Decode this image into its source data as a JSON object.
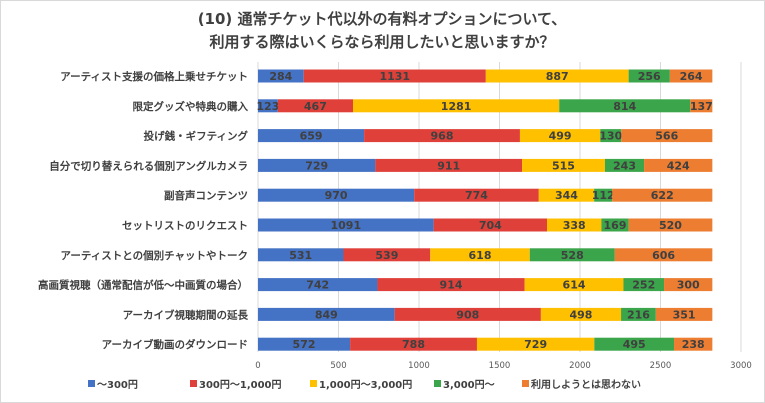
{
  "chart_data": {
    "type": "bar",
    "orientation": "horizontal",
    "stacked": true,
    "title": [
      "(10) 通常チケット代以外の有料オプションについて、",
      "利用する際はいくらなら利用したいと思いますか？"
    ],
    "categories": [
      "アーティスト支援の価格上乗せチケット",
      "限定グッズや特典の購入",
      "投げ銭・ギフティング",
      "自分で切り替えられる個別アングルカメラ",
      "副音声コンテンツ",
      "セットリストのリクエスト",
      "アーティストとの個別チャットやトーク",
      "高画質視聴（通常配信が低～中画質の場合）",
      "アーカイブ視聴期間の延長",
      "アーカイブ動画のダウンロード"
    ],
    "series": [
      {
        "name": "～300円",
        "color": "#4472c4",
        "values": [
          284,
          123,
          659,
          729,
          970,
          1091,
          531,
          742,
          849,
          572
        ]
      },
      {
        "name": "300円～1,000円",
        "color": "#e0403a",
        "values": [
          1131,
          467,
          968,
          911,
          774,
          704,
          539,
          914,
          908,
          788
        ]
      },
      {
        "name": "1,000円～3,000円",
        "color": "#ffc000",
        "values": [
          887,
          1281,
          499,
          515,
          344,
          338,
          618,
          614,
          498,
          729
        ]
      },
      {
        "name": "3,000円～",
        "color": "#3aa54a",
        "values": [
          256,
          814,
          130,
          243,
          112,
          169,
          528,
          252,
          216,
          495
        ]
      },
      {
        "name": "利用しようとは思わない",
        "color": "#ed7d31",
        "values": [
          264,
          137,
          566,
          424,
          622,
          520,
          606,
          300,
          351,
          238
        ]
      }
    ],
    "xlim": [
      0,
      3000
    ],
    "xticks": [
      0,
      500,
      1000,
      1500,
      2000,
      2500,
      3000
    ],
    "grid": true,
    "legend": "bottom"
  }
}
